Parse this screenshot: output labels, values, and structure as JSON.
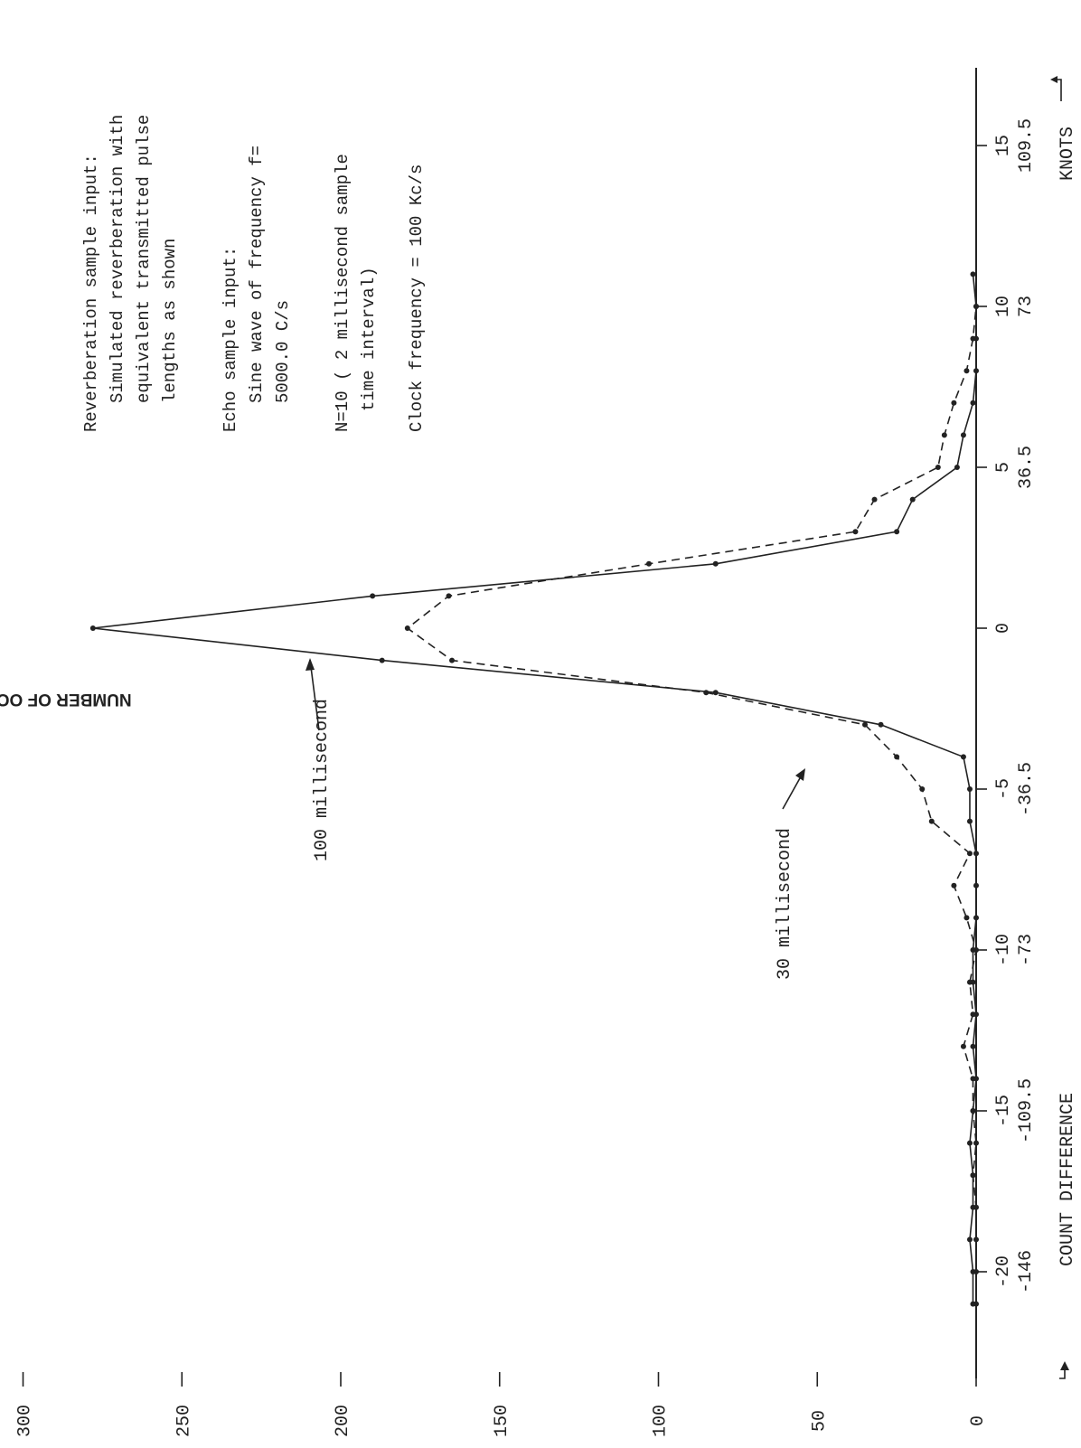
{
  "chart_data": {
    "type": "line",
    "orientation": "rotated-90-ccw",
    "xlabel": "COUNT DIFFERENCE",
    "xlabel_secondary": "KNOTS",
    "ylabel": "NUMBER OF OCCURRENCES",
    "xlim": [
      -21,
      18
    ],
    "ylim": [
      0,
      300
    ],
    "x_ticks": [
      -20,
      -15,
      -10,
      -5,
      0,
      5,
      10,
      15
    ],
    "x_tick_labels": [
      "-20",
      "-15",
      "-10",
      "-5",
      "0",
      "5",
      "10",
      "15"
    ],
    "knot_tick_labels": [
      "-146",
      "-109.5",
      "-73",
      "-36.5",
      "",
      "36.5",
      "73",
      "109.5"
    ],
    "y_ticks": [
      0,
      50,
      100,
      150,
      200,
      250,
      300
    ],
    "y_tick_labels": [
      "0",
      "50",
      "100",
      "150",
      "200",
      "250",
      "300"
    ],
    "grid": false,
    "series": [
      {
        "name": "100 millisecond",
        "style": "solid",
        "color": "#222222",
        "x": [
          -21,
          -20,
          -19,
          -18,
          -17,
          -16,
          -15,
          -14,
          -13,
          -12,
          -11,
          -10,
          -9,
          -8,
          -7,
          -6,
          -5,
          -4,
          -3,
          -2,
          -1,
          0,
          1,
          2,
          3,
          4,
          5,
          6,
          7,
          8,
          9,
          10,
          11
        ],
        "y": [
          1,
          1,
          2,
          1,
          1,
          2,
          1,
          0,
          1,
          0,
          1,
          1,
          0,
          0,
          0,
          2,
          2,
          4,
          30,
          82,
          187,
          278,
          190,
          82,
          25,
          20,
          6,
          4,
          1,
          0,
          0,
          0,
          1
        ]
      },
      {
        "name": "30 millisecond",
        "style": "dashed",
        "color": "#222222",
        "x": [
          -21,
          -20,
          -19,
          -18,
          -17,
          -16,
          -15,
          -14,
          -13,
          -12,
          -11,
          -10,
          -9,
          -8,
          -7,
          -6,
          -5,
          -4,
          -3,
          -2,
          -1,
          0,
          1,
          2,
          3,
          4,
          5,
          6,
          7,
          8,
          9,
          10
        ],
        "y": [
          0,
          0,
          0,
          0,
          1,
          0,
          1,
          1,
          4,
          1,
          2,
          0,
          3,
          7,
          2,
          14,
          17,
          25,
          35,
          85,
          165,
          179,
          166,
          103,
          38,
          32,
          12,
          10,
          7,
          3,
          1,
          0
        ]
      }
    ],
    "annotations": [
      "100 millisecond",
      "30 millisecond",
      "Reverberation sample input:",
      "Simulated reverberation with",
      "equivalent transmitted pulse",
      "lengths as shown",
      "Echo sample input:",
      "Sine wave of frequency f=",
      "5000.0 C/s",
      "N=10 ( 2 millisecond sample",
      "time interval)",
      "Clock frequency = 100 Kc/s"
    ]
  }
}
